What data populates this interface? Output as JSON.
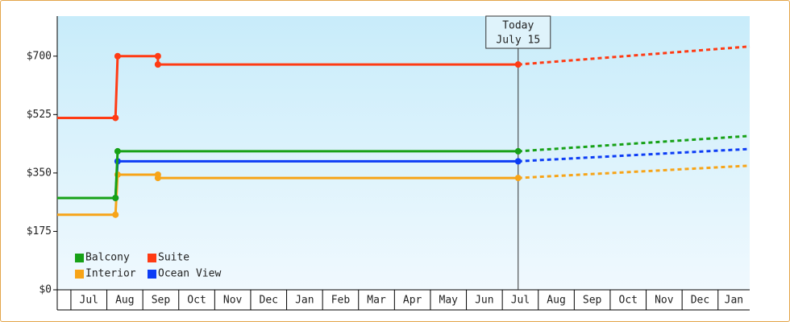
{
  "chart_data": {
    "type": "line",
    "categories": [
      "Jul",
      "Aug",
      "Sep",
      "Oct",
      "Nov",
      "Dec",
      "Jan",
      "Feb",
      "Mar",
      "Apr",
      "May",
      "Jun",
      "Jul",
      "Aug",
      "Sep",
      "Oct",
      "Nov",
      "Dec",
      "Jan"
    ],
    "xlim": [
      -0.38,
      18.88
    ],
    "ylim": [
      0,
      820
    ],
    "yticks": [
      {
        "value": 0,
        "label": "$0"
      },
      {
        "value": 175,
        "label": "$175"
      },
      {
        "value": 350,
        "label": "$350"
      },
      {
        "value": 525,
        "label": "$525"
      },
      {
        "value": 700,
        "label": "$700"
      }
    ],
    "legend": "lower left",
    "series": [
      {
        "name": "Balcony",
        "color": "#17a117",
        "x": [
          -0.38,
          1.24,
          1.3,
          12.44
        ],
        "values": [
          275,
          275,
          415,
          415
        ],
        "forecast": {
          "x": [
            12.44,
            18.88
          ],
          "values": [
            415,
            461
          ]
        }
      },
      {
        "name": "Suite",
        "color": "#ff3b14",
        "x": [
          -0.38,
          1.24,
          1.3,
          2.42,
          2.42,
          12.44
        ],
        "values": [
          515,
          515,
          700,
          700,
          675,
          675
        ],
        "forecast": {
          "x": [
            12.44,
            18.88
          ],
          "values": [
            675,
            729
          ]
        }
      },
      {
        "name": "Interior",
        "color": "#f7a418",
        "x": [
          -0.38,
          1.24,
          1.3,
          2.42,
          2.42,
          12.44
        ],
        "values": [
          225,
          225,
          345,
          345,
          335,
          335
        ],
        "forecast": {
          "x": [
            12.44,
            18.88
          ],
          "values": [
            335,
            372
          ]
        }
      },
      {
        "name": "Ocean View",
        "color": "#0c3cf5",
        "x": [
          -0.38,
          1.24,
          1.3,
          12.44
        ],
        "values": [
          275,
          275,
          385,
          385
        ],
        "forecast": {
          "x": [
            12.44,
            18.88
          ],
          "values": [
            385,
            422
          ]
        }
      }
    ],
    "annotation": {
      "x": 12.44,
      "lines": [
        "Today",
        "July 15"
      ]
    }
  }
}
